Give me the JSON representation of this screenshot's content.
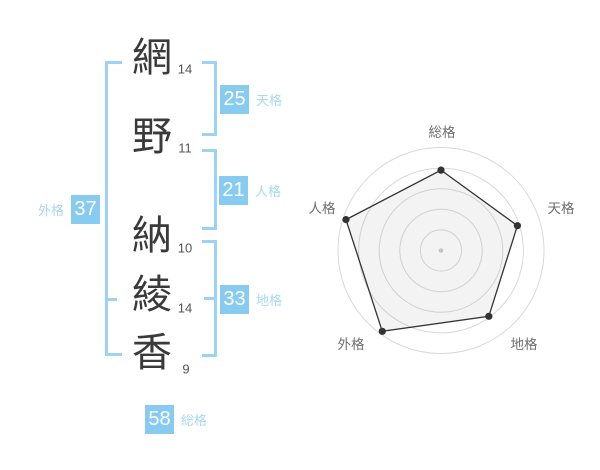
{
  "name_analysis": {
    "characters": [
      {
        "char": "網",
        "strokes": "14"
      },
      {
        "char": "野",
        "strokes": "11"
      },
      {
        "char": "納",
        "strokes": "10"
      },
      {
        "char": "綾",
        "strokes": "14"
      },
      {
        "char": "香",
        "strokes": "9"
      }
    ],
    "scores": {
      "tenkaku": {
        "label": "天格",
        "value": "25"
      },
      "jinkaku": {
        "label": "人格",
        "value": "21"
      },
      "chikaku": {
        "label": "地格",
        "value": "33"
      },
      "gaikaku": {
        "label": "外格",
        "value": "37"
      },
      "soukaku": {
        "label": "総格",
        "value": "58"
      }
    }
  },
  "chart_data": {
    "type": "radar",
    "categories": [
      "総格",
      "天格",
      "地格",
      "外格",
      "人格"
    ],
    "values": [
      78,
      78,
      79,
      97,
      97
    ],
    "axis_max": 100,
    "rings": [
      20,
      40,
      60,
      80,
      100
    ],
    "angles_deg": [
      90,
      18,
      -54,
      -126,
      162
    ],
    "title": "",
    "legend": "none",
    "grid": "circular"
  },
  "colors": {
    "accent_blue": "#87CBF1",
    "label_blue": "#A8D8F5",
    "bracket_blue": "#9CD2F3",
    "chip_text": "#FFFFFF",
    "kanji_text": "#3A3A3A",
    "stroke_count_text": "#555555",
    "chart_ring": "#D9D9D9",
    "chart_polygon_stroke": "#333333",
    "chart_dot": "#333333",
    "chart_center_dot": "#C4C4C4",
    "chart_label_text": "#707070",
    "background": "#FFFFFF"
  }
}
